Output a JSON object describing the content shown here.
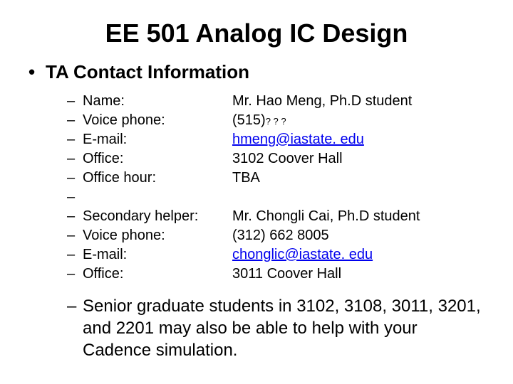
{
  "title": "EE 501 Analog IC Design",
  "section": "TA Contact Information",
  "rows": [
    {
      "label": "Name:",
      "value": "Mr. Hao Meng, Ph.D student",
      "link": false,
      "small": false
    },
    {
      "label": "Voice phone:",
      "value_prefix": "(515)",
      "value_suffix": "? ? ?",
      "link": false,
      "small": true
    },
    {
      "label": "E-mail:",
      "value": "hmeng@iastate. edu",
      "link": true,
      "small": false
    },
    {
      "label": "Office:",
      "value": "3102 Coover Hall",
      "link": false,
      "small": false
    },
    {
      "label": "Office hour:",
      "value": "TBA",
      "link": false,
      "small": false
    },
    {
      "label": "",
      "value": "",
      "link": false,
      "small": false
    },
    {
      "label": "Secondary helper:",
      "value": "Mr. Chongli Cai, Ph.D student",
      "link": false,
      "small": false
    },
    {
      "label": "Voice phone:",
      "value": "(312) 662 8005",
      "link": false,
      "small": false
    },
    {
      "label": "E-mail:",
      "value": "chonglic@iastate. edu",
      "link": true,
      "small": false
    },
    {
      "label": "Office:",
      "value": "3011 Coover Hall",
      "link": false,
      "small": false
    }
  ],
  "note": "Senior graduate students in 3102, 3108, 3011, 3201, and 2201 may also be able to help with your Cadence simulation.",
  "colors": {
    "text": "#000000",
    "link": "#0000ee",
    "background": "#ffffff"
  },
  "fonts": {
    "title_size": 36,
    "section_size": 26,
    "body_size": 20,
    "note_size": 24,
    "small_size": 13,
    "family": "Arial"
  }
}
